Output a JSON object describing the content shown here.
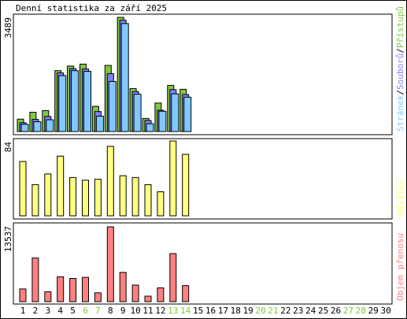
{
  "title": "Denní statistika za září 2025",
  "colors": {
    "hits": "#80c840",
    "files": "#8080ff",
    "pages": "#80c8ff",
    "visits": "#ffff80",
    "volume": "#ff8080",
    "weekend": "#80c840",
    "axis_text": "#000000"
  },
  "chart_data": [
    {
      "type": "bar",
      "title": "",
      "ymax_label": "3489",
      "ymax": 3489,
      "legend_vertical": [
        "Stránek",
        "/",
        "Souborů",
        "/",
        "Přístupů"
      ],
      "series": [
        {
          "name": "Přístupů",
          "values": [
            380,
            590,
            640,
            1860,
            2000,
            2060,
            770,
            2020,
            3489,
            1310,
            400,
            870,
            1410,
            1290
          ]
        },
        {
          "name": "Souborů",
          "values": [
            270,
            370,
            460,
            1790,
            1920,
            1910,
            610,
            1770,
            3400,
            1220,
            340,
            650,
            1280,
            1130
          ]
        },
        {
          "name": "Stránek",
          "values": [
            220,
            300,
            360,
            1710,
            1860,
            1840,
            470,
            1530,
            3300,
            1140,
            240,
            620,
            1150,
            1050
          ]
        }
      ]
    },
    {
      "type": "bar",
      "title": "",
      "ymax_label": "84",
      "ymax": 84,
      "legend_vertical": [
        "Návštěv"
      ],
      "series": [
        {
          "name": "Návštěv",
          "values": [
            61,
            35,
            47,
            67,
            43,
            40,
            41,
            78,
            45,
            43,
            35,
            27,
            84,
            69
          ]
        }
      ]
    },
    {
      "type": "bar",
      "title": "",
      "ymax_label": "13537",
      "ymax": 13537,
      "legend_vertical": [
        "Objem přenosu"
      ],
      "series": [
        {
          "name": "Objem přenosu",
          "values": [
            2300,
            7900,
            1800,
            4500,
            4200,
            4400,
            1600,
            13537,
            5300,
            3000,
            1000,
            2500,
            8700,
            2900
          ]
        }
      ]
    }
  ],
  "days": [
    "1",
    "2",
    "3",
    "4",
    "5",
    "6",
    "7",
    "8",
    "9",
    "10",
    "11",
    "12",
    "13",
    "14",
    "15",
    "16",
    "17",
    "18",
    "19",
    "20",
    "21",
    "22",
    "23",
    "24",
    "25",
    "26",
    "27",
    "28",
    "29",
    "30"
  ],
  "weekend_days": [
    "6",
    "7",
    "13",
    "14",
    "20",
    "21",
    "27",
    "28"
  ]
}
